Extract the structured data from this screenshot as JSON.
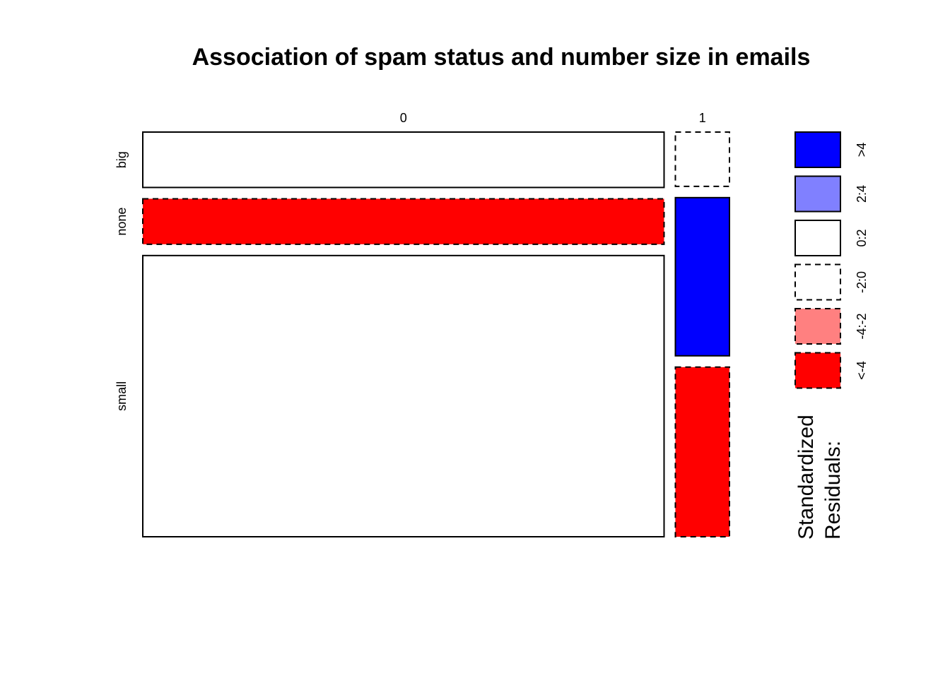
{
  "chart_data": {
    "type": "mosaic",
    "title": "Association of spam status and number size in emails",
    "x_variable_levels": [
      "0",
      "1"
    ],
    "y_variable_levels": [
      "big",
      "none",
      "small"
    ],
    "column_proportions": {
      "0": 0.906,
      "1": 0.094
    },
    "cells": [
      {
        "x": "0",
        "y": "big",
        "proportion_within_x": 0.145,
        "residual_class": "0:2"
      },
      {
        "x": "0",
        "y": "none",
        "proportion_within_x": 0.119,
        "residual_class": "<-4"
      },
      {
        "x": "0",
        "y": "small",
        "proportion_within_x": 0.736,
        "residual_class": "0:2"
      },
      {
        "x": "1",
        "y": "big",
        "proportion_within_x": 0.142,
        "residual_class": "-2:0"
      },
      {
        "x": "1",
        "y": "none",
        "proportion_within_x": 0.414,
        "residual_class": ">4"
      },
      {
        "x": "1",
        "y": "small",
        "proportion_within_x": 0.444,
        "residual_class": "<-4"
      }
    ],
    "legend": {
      "title_lines": [
        "Standardized",
        "Residuals:"
      ],
      "entries": [
        {
          "label": ">4",
          "color": "#0000FF",
          "dashed": false
        },
        {
          "label": "2:4",
          "color": "#8080FF",
          "dashed": false
        },
        {
          "label": "0:2",
          "color": "#FFFFFF",
          "dashed": false
        },
        {
          "label": "-2:0",
          "color": "#FFFFFF",
          "dashed": true
        },
        {
          "label": "-4:-2",
          "color": "#FF8080",
          "dashed": true
        },
        {
          "label": "<-4",
          "color": "#FF0000",
          "dashed": true
        }
      ]
    }
  }
}
